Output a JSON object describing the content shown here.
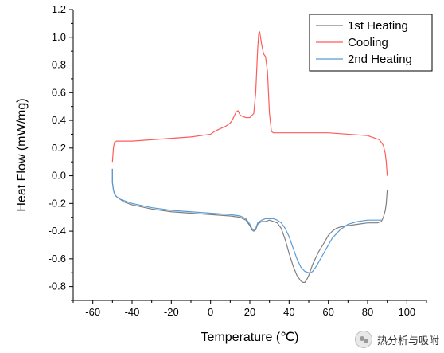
{
  "chart_data": {
    "type": "line",
    "xlabel": "Temperature (℃)",
    "ylabel": "Heat Flow (mW/mg)",
    "xlim": [
      -70,
      110
    ],
    "ylim": [
      -0.9,
      1.2
    ],
    "xticks": [
      -60,
      -40,
      -20,
      0,
      20,
      40,
      60,
      80,
      100
    ],
    "yticks": [
      -0.8,
      -0.6,
      -0.4,
      -0.2,
      0.0,
      0.2,
      0.4,
      0.6,
      0.8,
      1.0,
      1.2
    ],
    "xtick_labels": [
      "-60",
      "-40",
      "-20",
      "0",
      "20",
      "40",
      "60",
      "80",
      "100"
    ],
    "ytick_labels": [
      "-0.8",
      "-0.6",
      "-0.4",
      "-0.2",
      "0.0",
      "0.2",
      "0.4",
      "0.6",
      "0.8",
      "1.0",
      "1.2"
    ],
    "legend_position": "top-right",
    "grid": false,
    "series": [
      {
        "name": "1st Heating",
        "color": "#7f7f7f",
        "x": [
          -50,
          -50,
          -49.5,
          -49,
          -48,
          -46,
          -44,
          -40,
          -30,
          -20,
          -10,
          0,
          10,
          15,
          18,
          20,
          21,
          22,
          23,
          24,
          26,
          28,
          30,
          32,
          34,
          36,
          38,
          40,
          42,
          44,
          46,
          47,
          48,
          49,
          50,
          52,
          55,
          58,
          60,
          62,
          64,
          66,
          70,
          75,
          80,
          85,
          87,
          88,
          89,
          89.5,
          90
        ],
        "y": [
          0.05,
          -0.05,
          -0.1,
          -0.13,
          -0.15,
          -0.17,
          -0.19,
          -0.21,
          -0.24,
          -0.26,
          -0.27,
          -0.28,
          -0.29,
          -0.3,
          -0.32,
          -0.36,
          -0.39,
          -0.4,
          -0.39,
          -0.35,
          -0.33,
          -0.33,
          -0.32,
          -0.33,
          -0.34,
          -0.38,
          -0.46,
          -0.56,
          -0.65,
          -0.72,
          -0.76,
          -0.77,
          -0.77,
          -0.75,
          -0.72,
          -0.64,
          -0.55,
          -0.48,
          -0.43,
          -0.4,
          -0.38,
          -0.37,
          -0.36,
          -0.35,
          -0.34,
          -0.34,
          -0.33,
          -0.3,
          -0.25,
          -0.2,
          -0.1
        ]
      },
      {
        "name": "Cooling",
        "color": "#ff5b5b",
        "x": [
          90,
          89.5,
          89,
          88,
          86,
          80,
          70,
          60,
          50,
          40,
          34,
          32,
          31,
          30,
          29,
          28,
          27,
          26,
          25,
          24.5,
          24,
          23,
          22,
          20,
          18,
          16,
          15,
          14,
          13,
          12,
          11,
          10,
          8,
          5,
          2,
          0,
          -5,
          -10,
          -20,
          -30,
          -40,
          -45,
          -48,
          -49,
          -49.5,
          -50
        ],
        "y": [
          0.0,
          0.1,
          0.16,
          0.22,
          0.26,
          0.29,
          0.3,
          0.31,
          0.31,
          0.31,
          0.31,
          0.31,
          0.32,
          0.45,
          0.75,
          0.86,
          0.88,
          0.95,
          1.04,
          1.02,
          0.92,
          0.6,
          0.45,
          0.42,
          0.42,
          0.43,
          0.44,
          0.47,
          0.46,
          0.43,
          0.4,
          0.38,
          0.36,
          0.34,
          0.32,
          0.3,
          0.29,
          0.28,
          0.27,
          0.26,
          0.25,
          0.25,
          0.25,
          0.24,
          0.2,
          0.1
        ]
      },
      {
        "name": "2nd Heating",
        "color": "#5b9bd5",
        "x": [
          -50,
          -50,
          -49.5,
          -49,
          -48,
          -46,
          -44,
          -40,
          -30,
          -20,
          -10,
          0,
          10,
          15,
          18,
          20,
          21,
          22,
          23,
          24,
          26,
          28,
          30,
          32,
          34,
          36,
          38,
          40,
          42,
          44,
          46,
          48,
          50,
          51,
          52,
          54,
          56,
          58,
          60,
          62,
          64,
          66,
          70,
          75,
          80,
          85,
          87
        ],
        "y": [
          0.05,
          -0.05,
          -0.1,
          -0.13,
          -0.15,
          -0.17,
          -0.18,
          -0.2,
          -0.23,
          -0.25,
          -0.26,
          -0.27,
          -0.28,
          -0.29,
          -0.31,
          -0.35,
          -0.38,
          -0.39,
          -0.38,
          -0.34,
          -0.32,
          -0.31,
          -0.31,
          -0.31,
          -0.32,
          -0.34,
          -0.38,
          -0.44,
          -0.52,
          -0.6,
          -0.66,
          -0.69,
          -0.7,
          -0.7,
          -0.69,
          -0.65,
          -0.6,
          -0.55,
          -0.5,
          -0.45,
          -0.42,
          -0.39,
          -0.35,
          -0.33,
          -0.32,
          -0.32,
          -0.32
        ]
      }
    ]
  },
  "watermark": {
    "text": "热分析与吸附",
    "icon": "wechat-logo"
  }
}
